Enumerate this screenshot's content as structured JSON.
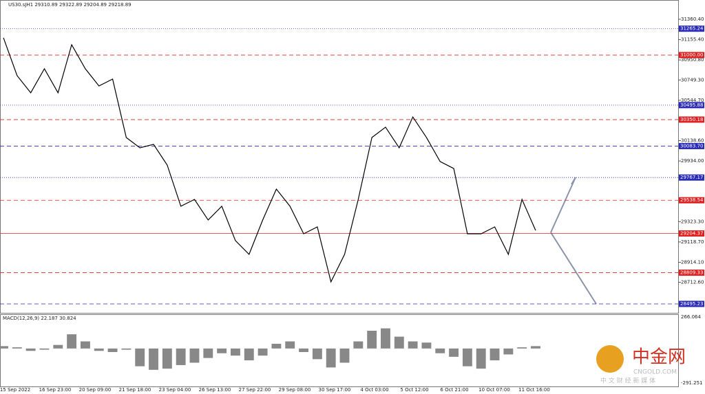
{
  "chart_data": {
    "type": "line",
    "title": "US30.sJH1  29310.89 29322.89 29204.89 29218.89",
    "series": [
      {
        "name": "US30.sJH1",
        "color": "#000000",
        "values": [
          31174,
          30793,
          30620,
          30862,
          30620,
          31104,
          30862,
          30689,
          30758,
          30170,
          30066,
          30101,
          29893,
          29478,
          29547,
          29340,
          29478,
          29132,
          28994,
          29340,
          29651,
          29478,
          29201,
          29270,
          28717,
          28994,
          29547,
          30170,
          30274,
          30066,
          30377,
          30170,
          29928,
          29858,
          29201,
          29201,
          29270,
          28994,
          29547,
          29235
        ]
      }
    ],
    "ylim": [
      28405,
      31554
    ],
    "yticks": [
      {
        "value": 31360.4,
        "label": "31360.40"
      },
      {
        "value": 31155.4,
        "label": "31155.40"
      },
      {
        "value": 30950.8,
        "label": "30950.80"
      },
      {
        "value": 30749.3,
        "label": "30749.30"
      },
      {
        "value": 30544.7,
        "label": "30544.70"
      },
      {
        "value": 30138.6,
        "label": "30138.60"
      },
      {
        "value": 29934,
        "label": "29934.00"
      },
      {
        "value": 29323.3,
        "label": "29323.30"
      },
      {
        "value": 29118.7,
        "label": "29118.70"
      },
      {
        "value": 28914.1,
        "label": "28914.10"
      },
      {
        "value": 28712.6,
        "label": "28712.60"
      }
    ],
    "levels": [
      {
        "value": 31265.24,
        "label": "31265.24",
        "color": "#2a2ab8",
        "style": "dotted"
      },
      {
        "value": 31000,
        "label": "31000.00",
        "color": "#e02020",
        "style": "dashed"
      },
      {
        "value": 30495.88,
        "label": "30495.88",
        "color": "#2a2ab8",
        "style": "dotted"
      },
      {
        "value": 30350.18,
        "label": "30350.18",
        "color": "#e02020",
        "style": "dashed"
      },
      {
        "value": 30083.7,
        "label": "30083.70",
        "color": "#2a2ab8",
        "style": "dashed"
      },
      {
        "value": 29767.17,
        "label": "29767.17",
        "color": "#2a2ab8",
        "style": "dotted"
      },
      {
        "value": 29538.54,
        "label": "29538.54",
        "color": "#e02020",
        "style": "dashed"
      },
      {
        "value": 29204.37,
        "label": "29204.37",
        "color": "#e02020",
        "style": "solid"
      },
      {
        "value": 28809.33,
        "label": "28809.33",
        "color": "#e02020",
        "style": "dashed"
      },
      {
        "value": 28495.23,
        "label": "28495.23",
        "color": "#2a2ab8",
        "style": "dashed"
      }
    ],
    "xlabels": [
      "15 Sep 2022",
      "16 Sep 23:00",
      "20 Sep 09:00",
      "21 Sep 18:00",
      "23 Sep 04:00",
      "26 Sep 13:00",
      "27 Sep 22:00",
      "29 Sep 08:00",
      "30 Sep 17:00",
      "4 Oct 03:00",
      "5 Oct 12:00",
      "6 Oct 21:00",
      "10 Oct 07:00",
      "11 Oct 16:00"
    ],
    "macd": {
      "title": "MACD(12,26,9) 22.187 30.824",
      "color": "#888888",
      "values": [
        20,
        10,
        -20,
        -10,
        30,
        120,
        60,
        -20,
        -30,
        -10,
        -150,
        -180,
        -170,
        -140,
        -120,
        -80,
        -40,
        -60,
        -100,
        -60,
        40,
        60,
        -30,
        -90,
        -160,
        -120,
        60,
        150,
        170,
        100,
        60,
        50,
        -40,
        -70,
        -150,
        -170,
        -100,
        -50,
        10,
        20
      ],
      "ylim": [
        -291.251,
        266.064
      ],
      "yticks": [
        266.064,
        -291.251
      ]
    },
    "watermark": {
      "logo": "中金网",
      "site": "CNGOLD.COM",
      "slogan": "中 文 财 经 新 媒 体"
    }
  }
}
